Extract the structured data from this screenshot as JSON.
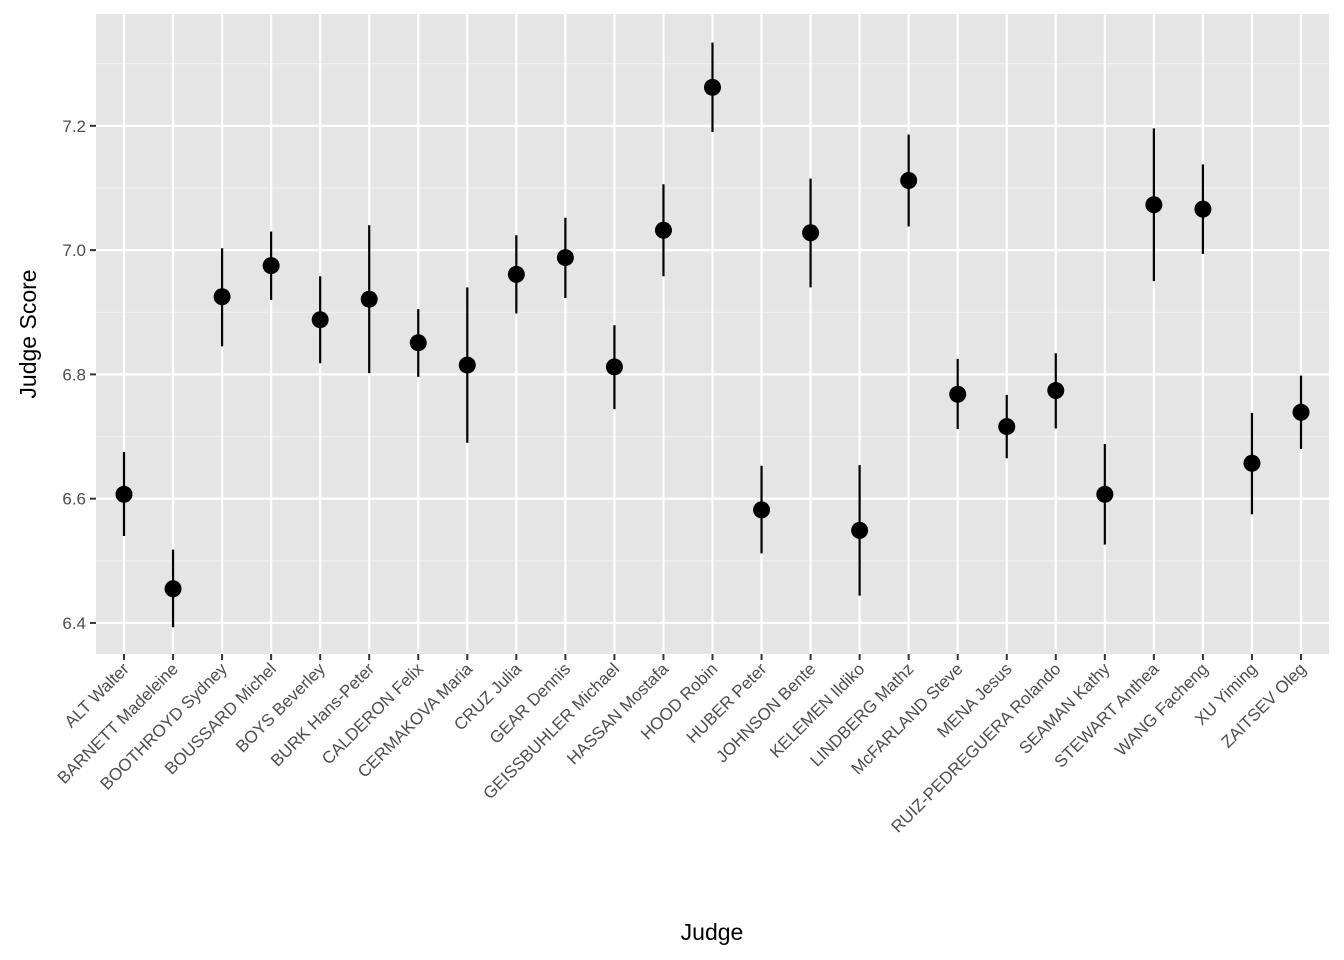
{
  "chart_data": {
    "type": "scatter",
    "title": "",
    "xlabel": "Judge",
    "ylabel": "Judge Score",
    "ylim": [
      6.35,
      7.38
    ],
    "y_ticks": [
      "6.4",
      "6.6",
      "6.8",
      "7.0",
      "7.2"
    ],
    "grid": true,
    "legend": "none",
    "categories": [
      "ALT Walter",
      "BARNETT Madeleine",
      "BOOTHROYD Sydney",
      "BOUSSARD Michel",
      "BOYS Beverley",
      "BURK Hans-Peter",
      "CALDERON Felix",
      "CERMAKOVA Maria",
      "CRUZ Julia",
      "GEAR Dennis",
      "GEISSBUHLER Michael",
      "HASSAN Mostafa",
      "HOOD Robin",
      "HUBER Peter",
      "JOHNSON Bente",
      "KELEMEN Ildiko",
      "LINDBERG Mathz",
      "McFARLAND Steve",
      "MENA Jesus",
      "RUIZ-PEDREGUERA Rolando",
      "SEAMAN Kathy",
      "STEWART Anthea",
      "WANG Facheng",
      "XU Yiming",
      "ZAITSEV Oleg"
    ],
    "points": [
      {
        "y": 6.607,
        "lower": 6.54,
        "upper": 6.675
      },
      {
        "y": 6.455,
        "lower": 6.393,
        "upper": 6.518
      },
      {
        "y": 6.925,
        "lower": 6.845,
        "upper": 7.003
      },
      {
        "y": 6.975,
        "lower": 6.92,
        "upper": 7.03
      },
      {
        "y": 6.888,
        "lower": 6.818,
        "upper": 6.958
      },
      {
        "y": 6.921,
        "lower": 6.802,
        "upper": 7.04
      },
      {
        "y": 6.851,
        "lower": 6.796,
        "upper": 6.905
      },
      {
        "y": 6.815,
        "lower": 6.69,
        "upper": 6.94
      },
      {
        "y": 6.961,
        "lower": 6.898,
        "upper": 7.024
      },
      {
        "y": 6.988,
        "lower": 6.923,
        "upper": 7.052
      },
      {
        "y": 6.812,
        "lower": 6.744,
        "upper": 6.879
      },
      {
        "y": 7.032,
        "lower": 6.958,
        "upper": 7.106
      },
      {
        "y": 7.262,
        "lower": 7.19,
        "upper": 7.334
      },
      {
        "y": 6.582,
        "lower": 6.512,
        "upper": 6.653
      },
      {
        "y": 7.028,
        "lower": 6.94,
        "upper": 7.115
      },
      {
        "y": 6.549,
        "lower": 6.444,
        "upper": 6.654
      },
      {
        "y": 7.112,
        "lower": 7.038,
        "upper": 7.186
      },
      {
        "y": 6.768,
        "lower": 6.712,
        "upper": 6.825
      },
      {
        "y": 6.716,
        "lower": 6.665,
        "upper": 6.767
      },
      {
        "y": 6.774,
        "lower": 6.713,
        "upper": 6.834
      },
      {
        "y": 6.607,
        "lower": 6.526,
        "upper": 6.688
      },
      {
        "y": 7.073,
        "lower": 6.95,
        "upper": 7.196
      },
      {
        "y": 7.066,
        "lower": 6.994,
        "upper": 7.138
      },
      {
        "y": 6.657,
        "lower": 6.575,
        "upper": 6.738
      },
      {
        "y": 6.739,
        "lower": 6.68,
        "upper": 6.798
      }
    ]
  },
  "colors": {
    "panel_background": "#e5e5e5",
    "grid_major": "#ffffff",
    "grid_minor": "#f2f2f2",
    "point": "#000000",
    "tick_text": "#4d4d4d",
    "axis_title": "#000000"
  }
}
